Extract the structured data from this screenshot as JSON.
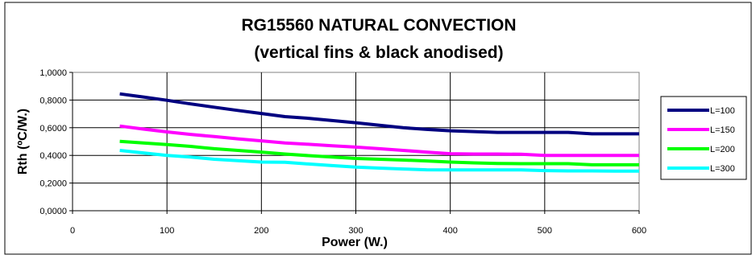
{
  "chart_data": {
    "type": "line",
    "title": "RG15560 NATURAL CONVECTION",
    "subtitle": "(vertical fins & black anodised)",
    "xlabel": "Power (W.)",
    "ylabel": "Rth (ºC/W.)",
    "xlim": [
      0,
      600
    ],
    "ylim": [
      0,
      1
    ],
    "x_ticks": [
      "0",
      "100",
      "200",
      "300",
      "400",
      "500",
      "600"
    ],
    "y_ticks": [
      "0,0000",
      "0,2000",
      "0,4000",
      "0,6000",
      "0,8000",
      "1,0000"
    ],
    "grid": true,
    "legend_position": "right",
    "x": [
      50,
      75,
      100,
      125,
      150,
      175,
      200,
      225,
      250,
      275,
      300,
      325,
      350,
      375,
      400,
      425,
      450,
      475,
      500,
      525,
      550,
      575,
      600
    ],
    "series": [
      {
        "name": "L=100",
        "color": "#000080",
        "values": [
          0.845,
          0.822,
          0.798,
          0.772,
          0.748,
          0.725,
          0.703,
          0.68,
          0.668,
          0.652,
          0.636,
          0.618,
          0.6,
          0.588,
          0.578,
          0.572,
          0.566,
          0.566,
          0.566,
          0.566,
          0.556,
          0.556,
          0.556
        ]
      },
      {
        "name": "L=150",
        "color": "#ff00ff",
        "values": [
          0.612,
          0.59,
          0.57,
          0.552,
          0.536,
          0.52,
          0.505,
          0.49,
          0.48,
          0.47,
          0.46,
          0.448,
          0.436,
          0.424,
          0.412,
          0.41,
          0.41,
          0.408,
          0.4,
          0.4,
          0.4,
          0.4,
          0.4
        ]
      },
      {
        "name": "L=200",
        "color": "#00ff00",
        "values": [
          0.502,
          0.49,
          0.478,
          0.465,
          0.448,
          0.436,
          0.424,
          0.41,
          0.398,
          0.388,
          0.378,
          0.372,
          0.366,
          0.36,
          0.352,
          0.346,
          0.342,
          0.34,
          0.34,
          0.34,
          0.332,
          0.332,
          0.332
        ]
      },
      {
        "name": "L=300",
        "color": "#00ffff",
        "values": [
          0.436,
          0.418,
          0.4,
          0.388,
          0.372,
          0.362,
          0.352,
          0.35,
          0.338,
          0.326,
          0.315,
          0.308,
          0.302,
          0.296,
          0.295,
          0.295,
          0.295,
          0.295,
          0.29,
          0.288,
          0.288,
          0.286,
          0.286
        ]
      }
    ]
  }
}
